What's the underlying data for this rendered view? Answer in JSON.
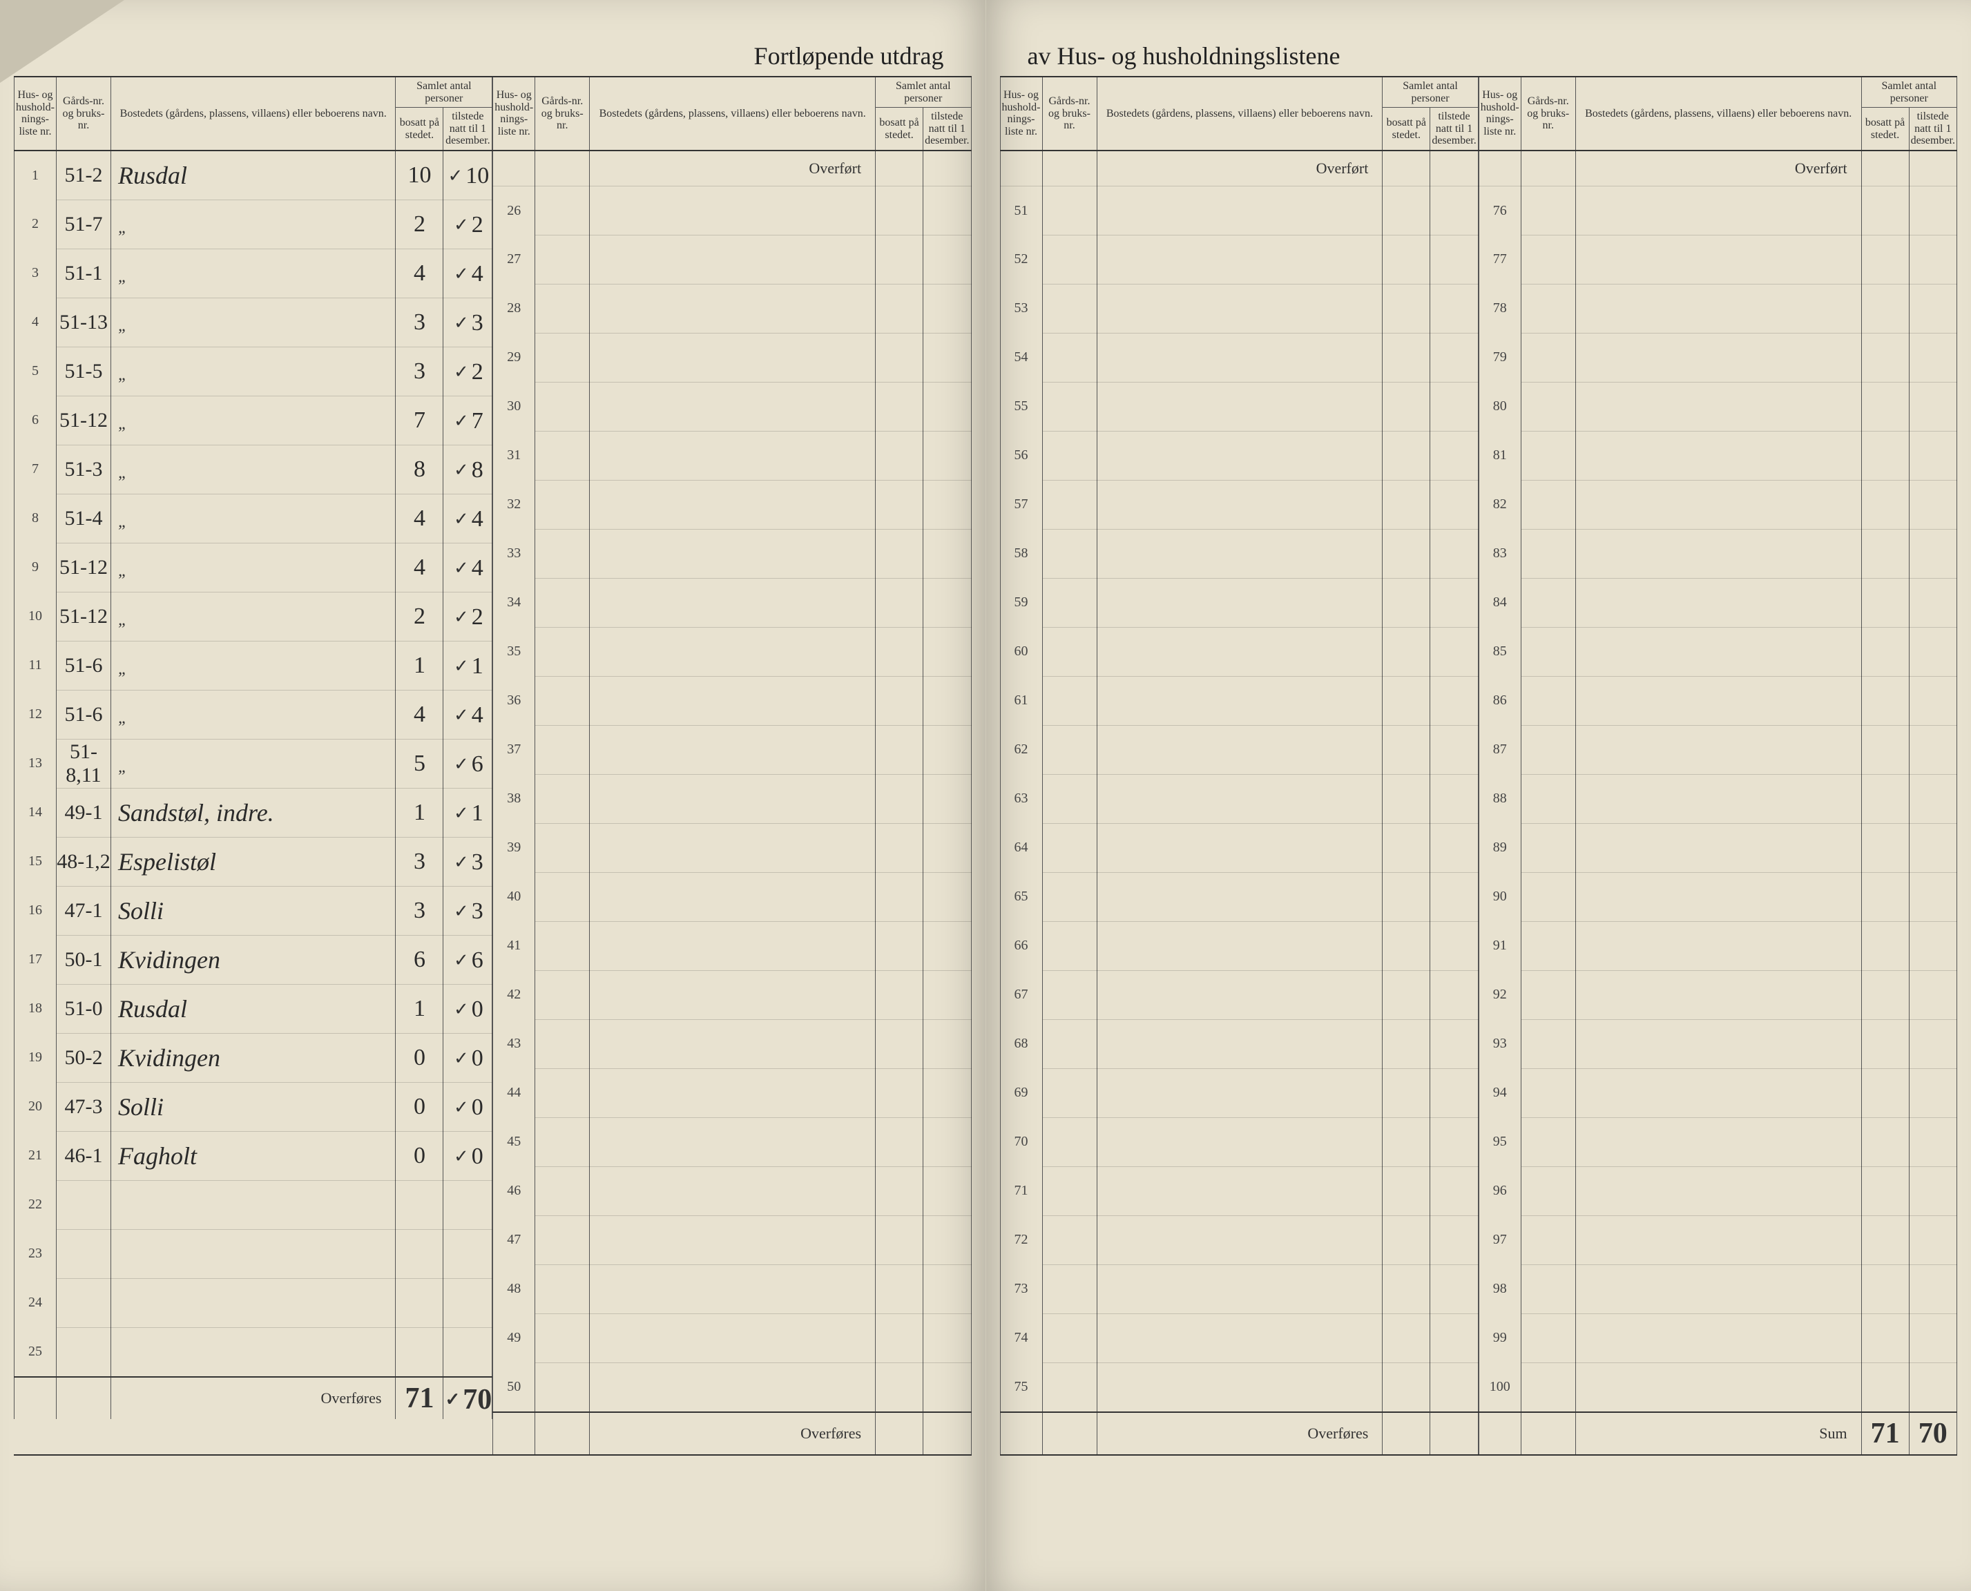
{
  "title_left": "Fortløpende utdrag",
  "title_right": "av Hus- og husholdningslistene",
  "headers": {
    "nr": "Hus- og hushold-nings-liste nr.",
    "gard": "Gårds-nr. og bruks-nr.",
    "bosted": "Bostedets (gårdens, plassens, villaens) eller beboerens navn.",
    "samlet": "Samlet antal personer",
    "bosatt": "bosatt på stedet.",
    "tilstede": "tilstede natt til 1 desember."
  },
  "overfort_label": "Overført",
  "overfores_label": "Overføres",
  "sum_label": "Sum",
  "panels": [
    {
      "start": 1,
      "end": 25,
      "rows": [
        {
          "nr": "1",
          "gard": "51-2",
          "bosted": "Rusdal",
          "bosatt": "10",
          "tilstede": "10",
          "check": true
        },
        {
          "nr": "2",
          "gard": "51-7",
          "bosted": "\"",
          "bosatt": "2",
          "tilstede": "2",
          "check": true
        },
        {
          "nr": "3",
          "gard": "51-1",
          "bosted": "\"",
          "bosatt": "4",
          "tilstede": "4",
          "check": true
        },
        {
          "nr": "4",
          "gard": "51-13",
          "bosted": "\"",
          "bosatt": "3",
          "tilstede": "3",
          "check": true
        },
        {
          "nr": "5",
          "gard": "51-5",
          "bosted": "\"",
          "bosatt": "3",
          "tilstede": "2",
          "check": true
        },
        {
          "nr": "6",
          "gard": "51-12",
          "bosted": "\"",
          "bosatt": "7",
          "tilstede": "7",
          "check": true
        },
        {
          "nr": "7",
          "gard": "51-3",
          "bosted": "\"",
          "bosatt": "8",
          "tilstede": "8",
          "check": true
        },
        {
          "nr": "8",
          "gard": "51-4",
          "bosted": "\"",
          "bosatt": "4",
          "tilstede": "4",
          "check": true
        },
        {
          "nr": "9",
          "gard": "51-12",
          "bosted": "\"",
          "bosatt": "4",
          "tilstede": "4",
          "check": true
        },
        {
          "nr": "10",
          "gard": "51-12",
          "bosted": "\"",
          "bosatt": "2",
          "tilstede": "2",
          "check": true
        },
        {
          "nr": "11",
          "gard": "51-6",
          "bosted": "\"",
          "bosatt": "1",
          "tilstede": "1",
          "check": true
        },
        {
          "nr": "12",
          "gard": "51-6",
          "bosted": "\"",
          "bosatt": "4",
          "tilstede": "4",
          "check": true
        },
        {
          "nr": "13",
          "gard": "51-8,11",
          "bosted": "\"",
          "bosatt": "5",
          "tilstede": "6",
          "check": true
        },
        {
          "nr": "14",
          "gard": "49-1",
          "bosted": "Sandstøl, indre.",
          "bosatt": "1",
          "tilstede": "1",
          "check": true
        },
        {
          "nr": "15",
          "gard": "48-1,2",
          "bosted": "Espelistøl",
          "bosatt": "3",
          "tilstede": "3",
          "check": true
        },
        {
          "nr": "16",
          "gard": "47-1",
          "bosted": "Solli",
          "bosatt": "3",
          "tilstede": "3",
          "check": true
        },
        {
          "nr": "17",
          "gard": "50-1",
          "bosted": "Kvidingen",
          "bosatt": "6",
          "tilstede": "6",
          "check": true
        },
        {
          "nr": "18",
          "gard": "51-0",
          "bosted": "Rusdal",
          "bosatt": "1",
          "tilstede": "0",
          "check": true
        },
        {
          "nr": "19",
          "gard": "50-2",
          "bosted": "Kvidingen",
          "bosatt": "0",
          "tilstede": "0",
          "check": true
        },
        {
          "nr": "20",
          "gard": "47-3",
          "bosted": "Solli",
          "bosatt": "0",
          "tilstede": "0",
          "check": true
        },
        {
          "nr": "21",
          "gard": "46-1",
          "bosted": "Fagholt",
          "bosatt": "0",
          "tilstede": "0",
          "check": true
        },
        {
          "nr": "22",
          "gard": "",
          "bosted": "",
          "bosatt": "",
          "tilstede": "",
          "check": false
        },
        {
          "nr": "23",
          "gard": "",
          "bosted": "",
          "bosatt": "",
          "tilstede": "",
          "check": false
        },
        {
          "nr": "24",
          "gard": "",
          "bosted": "",
          "bosatt": "",
          "tilstede": "",
          "check": false
        },
        {
          "nr": "25",
          "gard": "",
          "bosted": "",
          "bosatt": "",
          "tilstede": "",
          "check": false
        }
      ],
      "footer": {
        "label": "Overføres",
        "bosatt": "71",
        "tilstede": "70",
        "check": true
      }
    },
    {
      "start": 26,
      "end": 50,
      "rows": [],
      "footer": {
        "label": "Overføres",
        "bosatt": "",
        "tilstede": ""
      }
    },
    {
      "start": 51,
      "end": 75,
      "rows": [],
      "footer": {
        "label": "Overføres",
        "bosatt": "",
        "tilstede": ""
      }
    },
    {
      "start": 76,
      "end": 100,
      "rows": [],
      "footer": {
        "label": "Sum",
        "bosatt": "71",
        "tilstede": "70"
      }
    }
  ],
  "colors": {
    "paper": "#e8e2d0",
    "ink": "#2a2a2a",
    "rule": "#555555",
    "heavy_rule": "#333333",
    "shadow": "rgba(0,0,0,0.25)"
  }
}
